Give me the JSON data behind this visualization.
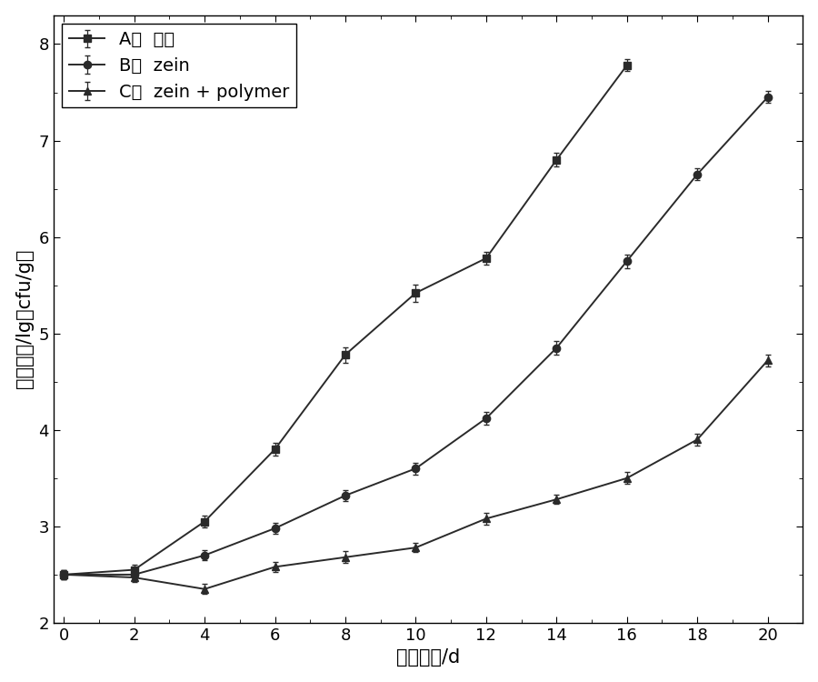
{
  "x_A": [
    0,
    2,
    4,
    6,
    8,
    10,
    12,
    14,
    16
  ],
  "y_A": [
    2.5,
    2.55,
    3.05,
    3.8,
    4.78,
    5.42,
    5.78,
    6.8,
    7.78
  ],
  "err_A": [
    0.05,
    0.05,
    0.06,
    0.07,
    0.08,
    0.09,
    0.07,
    0.07,
    0.06
  ],
  "x_B": [
    0,
    2,
    4,
    6,
    8,
    10,
    12,
    14,
    16,
    18,
    20
  ],
  "y_B": [
    2.5,
    2.5,
    2.7,
    2.98,
    3.32,
    3.6,
    4.12,
    4.85,
    5.75,
    6.65,
    7.45
  ],
  "err_B": [
    0.05,
    0.05,
    0.05,
    0.06,
    0.06,
    0.06,
    0.07,
    0.07,
    0.07,
    0.06,
    0.06
  ],
  "x_C": [
    0,
    2,
    4,
    6,
    8,
    10,
    12,
    14,
    16,
    18,
    20
  ],
  "y_C": [
    2.5,
    2.47,
    2.35,
    2.58,
    2.68,
    2.78,
    3.08,
    3.28,
    3.5,
    3.9,
    4.72
  ],
  "err_C": [
    0.05,
    0.05,
    0.05,
    0.05,
    0.06,
    0.05,
    0.06,
    0.05,
    0.06,
    0.06,
    0.06
  ],
  "xlabel": "赐藏时间/d",
  "ylabel": "细菌总数/lg（cfu/g）",
  "legend_A": "A：  空白",
  "legend_B": "B：  zein",
  "legend_C": "C：  zein + polymer",
  "ylim": [
    2.0,
    8.3
  ],
  "xlim": [
    -0.3,
    21.0
  ],
  "yticks": [
    2,
    3,
    4,
    5,
    6,
    7,
    8
  ],
  "xticks": [
    0,
    2,
    4,
    6,
    8,
    10,
    12,
    14,
    16,
    18,
    20
  ],
  "color": "#2a2a2a",
  "background_color": "#ffffff",
  "linewidth": 1.4,
  "markersize": 6,
  "label_fontsize": 15,
  "tick_fontsize": 13,
  "legend_fontsize": 14
}
